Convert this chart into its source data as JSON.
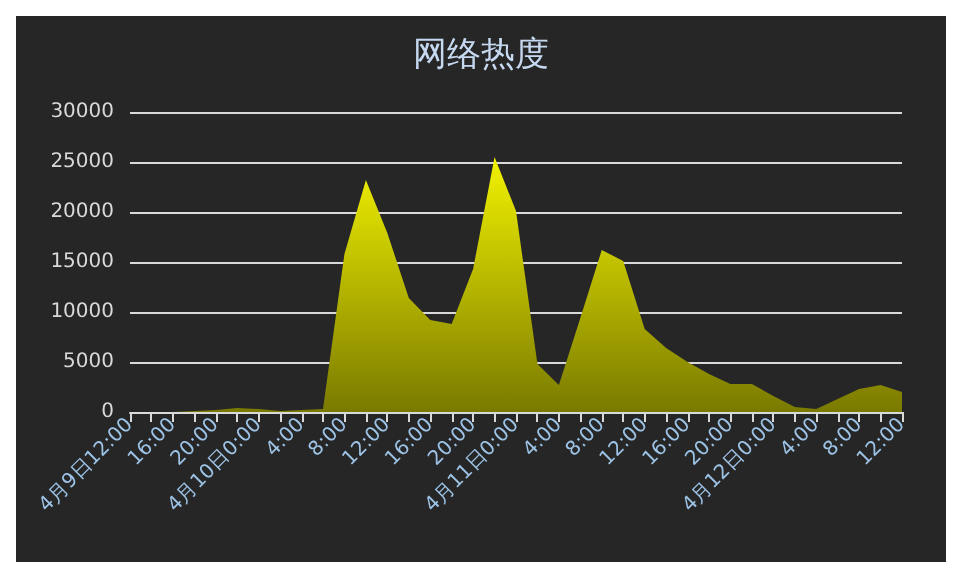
{
  "chart_data": {
    "type": "area",
    "title": "网络热度",
    "categories": [
      "4月9日12:00",
      null,
      "16:00",
      null,
      "20:00",
      null,
      "4月10日0:00",
      null,
      "4:00",
      null,
      "8:00",
      null,
      "12:00",
      null,
      "16:00",
      null,
      "20:00",
      null,
      "4月11日0:00",
      null,
      "4:00",
      null,
      "8:00",
      null,
      "12:00",
      null,
      "16:00",
      null,
      "20:00",
      null,
      "4月12日0:00",
      null,
      "4:00",
      null,
      "8:00",
      null,
      "12:00"
    ],
    "values": [
      0,
      0,
      0,
      100,
      200,
      400,
      300,
      100,
      200,
      300,
      15800,
      23200,
      17900,
      11400,
      9200,
      8800,
      14300,
      25500,
      20100,
      4800,
      2700,
      9400,
      16200,
      15100,
      8300,
      6400,
      5000,
      3800,
      2800,
      2800,
      1600,
      500,
      300,
      1300,
      2300,
      2700,
      2000
    ],
    "color": "#f2f200",
    "ylim": [
      0,
      30000
    ],
    "yticks": [
      0,
      5000,
      10000,
      15000,
      20000,
      25000,
      30000
    ],
    "grid": "y"
  }
}
